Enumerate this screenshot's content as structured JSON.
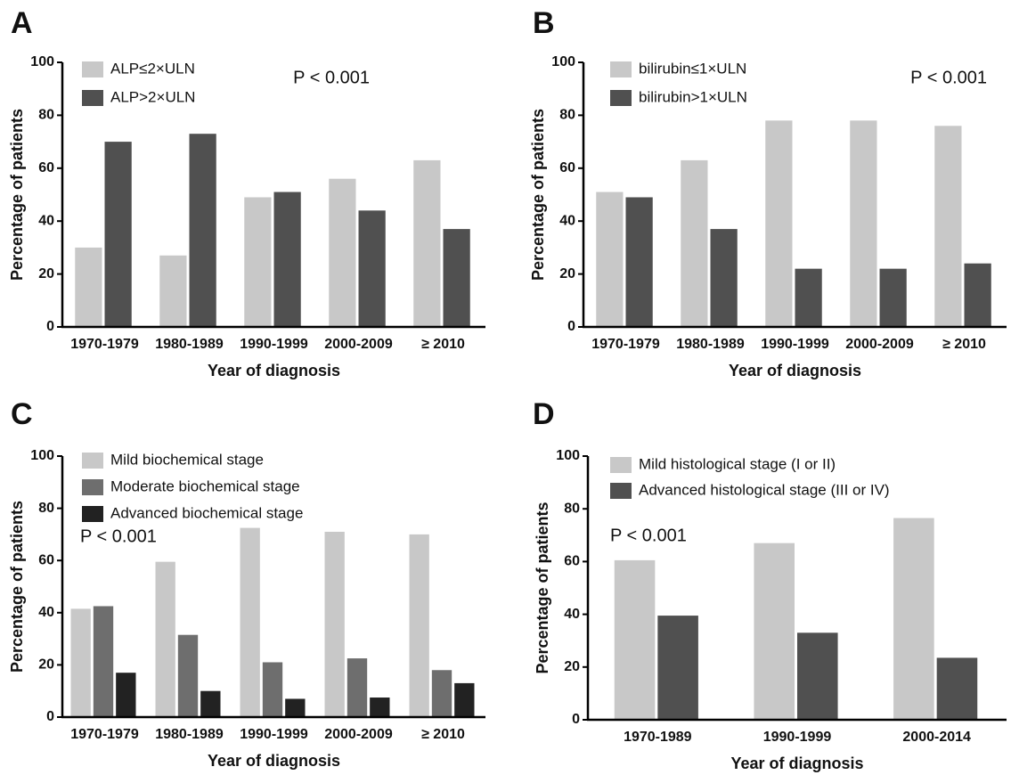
{
  "chart_data": [
    {
      "type": "bar",
      "panel_label": "A",
      "annotation": "P < 0.001",
      "xlabel": "Year of diagnosis",
      "ylabel": "Percentage of patients",
      "categories": [
        "1970-1979",
        "1980-1989",
        "1990-1999",
        "2000-2009",
        "≥ 2010"
      ],
      "series": [
        {
          "name": "ALP≤2×ULN",
          "color": "#c8c8c8",
          "values": [
            30,
            27,
            49,
            56,
            63
          ]
        },
        {
          "name": "ALP>2×ULN",
          "color": "#505050",
          "values": [
            70,
            73,
            51,
            44,
            37
          ]
        }
      ],
      "ylim": [
        0,
        100
      ],
      "yticks": [
        0,
        20,
        40,
        60,
        80,
        100
      ],
      "legend": "upper left"
    },
    {
      "type": "bar",
      "panel_label": "B",
      "annotation": "P < 0.001",
      "xlabel": "Year of diagnosis",
      "ylabel": "Percentage of patients",
      "categories": [
        "1970-1979",
        "1980-1989",
        "1990-1999",
        "2000-2009",
        "≥ 2010"
      ],
      "series": [
        {
          "name": "bilirubin≤1×ULN",
          "color": "#c8c8c8",
          "values": [
            51,
            63,
            78,
            78,
            76
          ]
        },
        {
          "name": "bilirubin>1×ULN",
          "color": "#505050",
          "values": [
            49,
            37,
            22,
            22,
            24
          ]
        }
      ],
      "ylim": [
        0,
        100
      ],
      "yticks": [
        0,
        20,
        40,
        60,
        80,
        100
      ],
      "legend": "upper left"
    },
    {
      "type": "bar",
      "panel_label": "C",
      "annotation": "P < 0.001",
      "xlabel": "Year of diagnosis",
      "ylabel": "Percentage of patients",
      "categories": [
        "1970-1979",
        "1980-1989",
        "1990-1999",
        "2000-2009",
        "≥ 2010"
      ],
      "series": [
        {
          "name": "Mild biochemical stage",
          "color": "#c8c8c8",
          "values": [
            41.5,
            59.5,
            72.5,
            71,
            70
          ]
        },
        {
          "name": "Moderate biochemical stage",
          "color": "#6e6e6e",
          "values": [
            42.5,
            31.5,
            21,
            22.5,
            18
          ]
        },
        {
          "name": "Advanced biochemical stage",
          "color": "#222222",
          "values": [
            17,
            10,
            7,
            7.5,
            13
          ]
        }
      ],
      "ylim": [
        0,
        100
      ],
      "yticks": [
        0,
        20,
        40,
        60,
        80,
        100
      ],
      "legend": "upper left"
    },
    {
      "type": "bar",
      "panel_label": "D",
      "annotation": "P < 0.001",
      "xlabel": "Year of diagnosis",
      "ylabel": "Percentage of patients",
      "categories": [
        "1970-1989",
        "1990-1999",
        "2000-2014"
      ],
      "series": [
        {
          "name": "Mild histological stage (I or II)",
          "color": "#c8c8c8",
          "values": [
            60.5,
            67,
            76.5
          ]
        },
        {
          "name": "Advanced histological stage (III or IV)",
          "color": "#505050",
          "values": [
            39.5,
            33,
            23.5
          ]
        }
      ],
      "ylim": [
        0,
        100
      ],
      "yticks": [
        0,
        20,
        40,
        60,
        80,
        100
      ],
      "legend": "upper left"
    }
  ]
}
